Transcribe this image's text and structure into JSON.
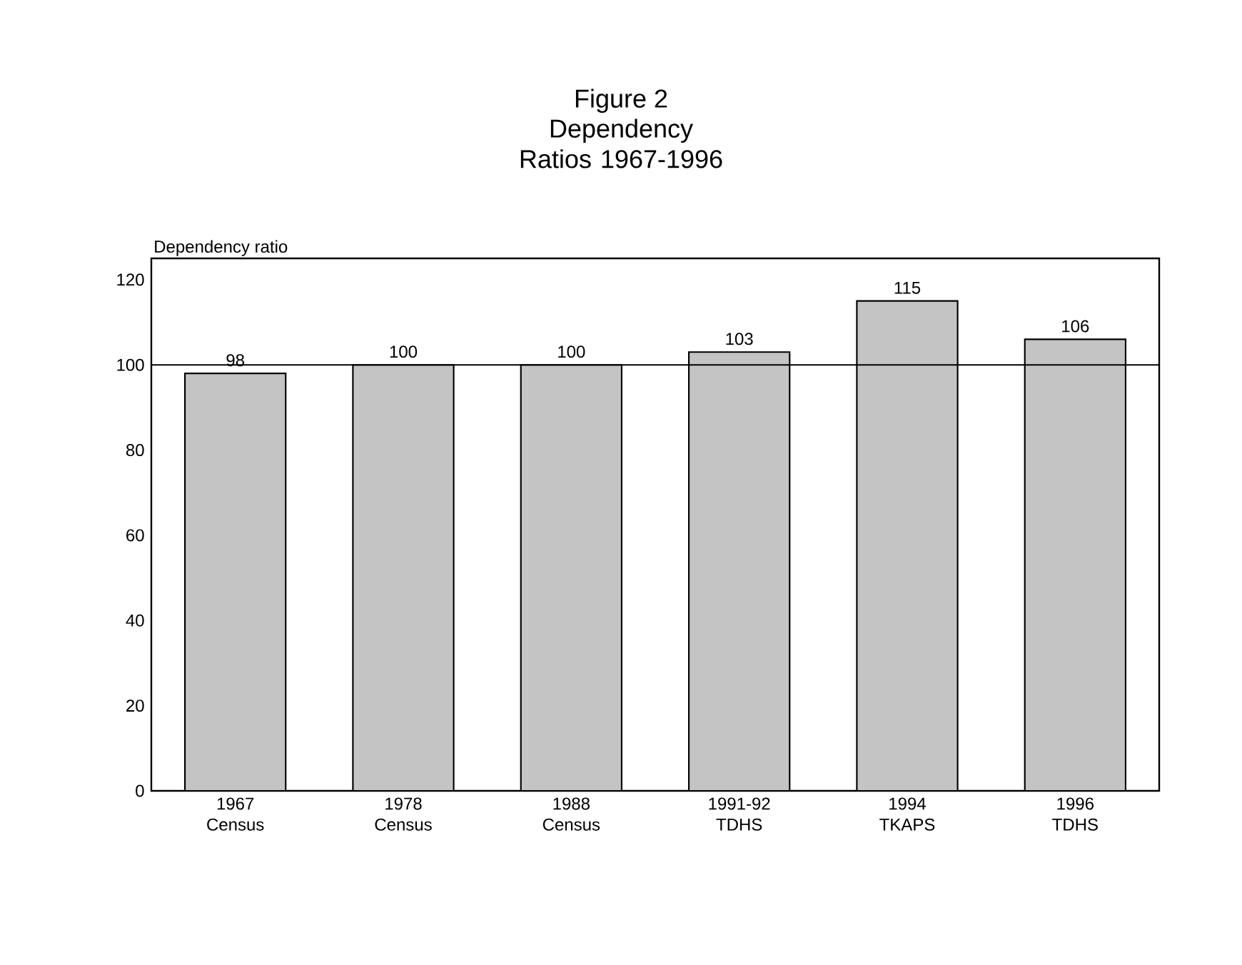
{
  "chart_data": {
    "type": "bar",
    "title": "Figure 2",
    "subtitle": "Dependency Ratios 1967-1996",
    "ylabel": "Dependency ratio",
    "categories": [
      "1967 Census",
      "1978 Census",
      "1988 Census",
      "1991-92 TDHS",
      "1994 TKAPS",
      "1996 TDHS"
    ],
    "values": [
      98,
      100,
      100,
      103,
      115,
      106
    ],
    "color": "#c4c4c4",
    "ylim": [
      0,
      125
    ],
    "yticks": [
      0,
      20,
      40,
      60,
      80,
      100,
      120
    ],
    "ref_lines": [
      {
        "axis": "y",
        "value": 100,
        "color": "#000000"
      }
    ],
    "data_labels": true,
    "grid": false
  }
}
